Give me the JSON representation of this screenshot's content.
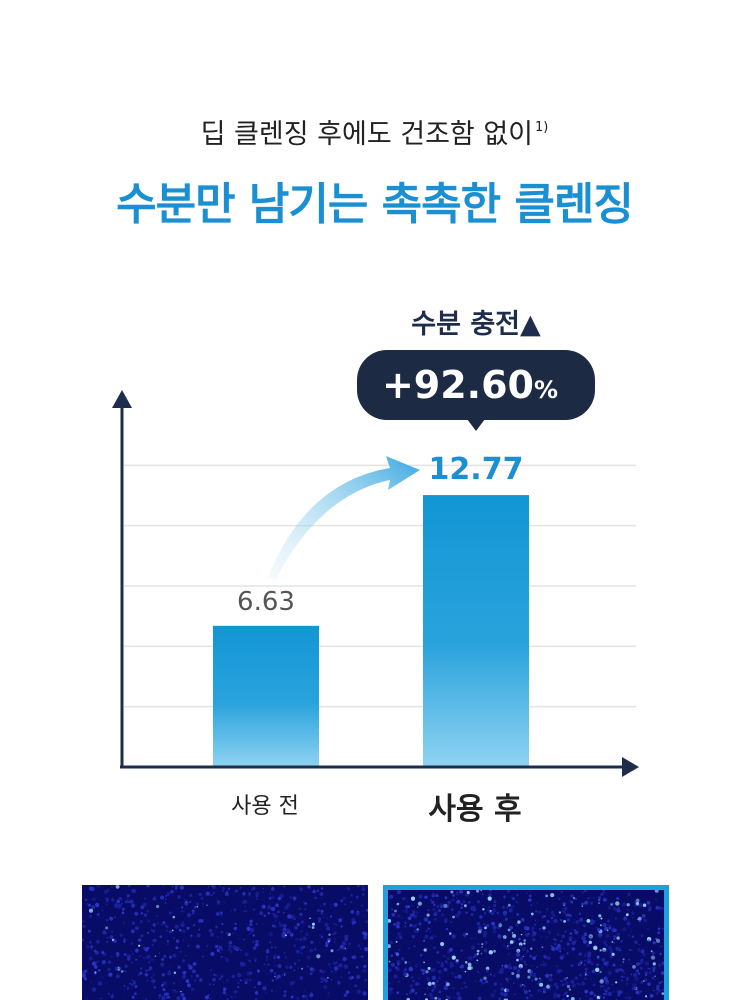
{
  "header": {
    "subtitle": "딥 클렌징 후에도 건조함 없이",
    "footnote_mark": "1)",
    "title": "수분만 남기는 촉촉한 클렌징"
  },
  "chart_data": {
    "type": "bar",
    "categories": [
      "사용 전",
      "사용 후"
    ],
    "values": [
      6.63,
      12.77
    ],
    "value_labels": [
      "6.63",
      "12.77"
    ],
    "ylim": [
      0,
      17
    ],
    "grid": true,
    "callout_title": "수분 충전▲",
    "callout_value": "+92.60",
    "callout_unit": "%"
  },
  "colors": {
    "accent": "#1a8fd1",
    "bar_top": "#1296d4",
    "bar_bottom": "#8fd3f2",
    "axis": "#1f2d4d",
    "callout_bg": "#1d2a44",
    "photo_bg": "#0a0d6e",
    "photo_border": "#1ea0e0"
  }
}
